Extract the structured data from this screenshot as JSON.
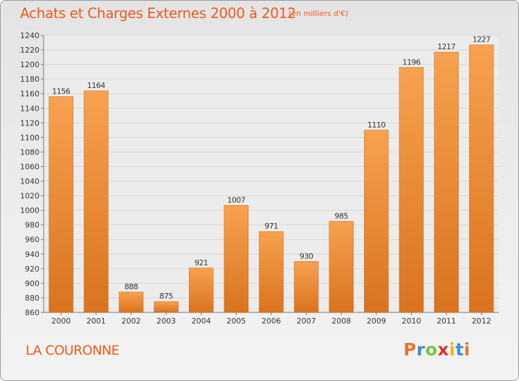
{
  "header": {
    "title": "Achats et Charges Externes 2000 à 2012",
    "unit": "(en milliers d'€)"
  },
  "footer": {
    "commune": "LA COURONNE",
    "brand": "Proxiti",
    "brand_colors": [
      "#e8742a",
      "#3a8fd6",
      "#7cc242",
      "#d9322c",
      "#f2b318",
      "#3a8fd6",
      "#e8742a"
    ]
  },
  "colors": {
    "accent": "#ee5a1a",
    "bar_top": "#f7a24f",
    "bar_bottom": "#d9731f"
  },
  "chart_data": {
    "type": "bar",
    "title": "Achats et Charges Externes 2000 à 2012",
    "subtitle": "(en milliers d'€)",
    "categories": [
      "2000",
      "2001",
      "2002",
      "2003",
      "2004",
      "2005",
      "2006",
      "2007",
      "2008",
      "2009",
      "2010",
      "2011",
      "2012"
    ],
    "values": [
      1156,
      1164,
      888,
      875,
      921,
      1007,
      971,
      930,
      985,
      1110,
      1196,
      1217,
      1227
    ],
    "data_labels": [
      "1156",
      "1164",
      "888",
      "875",
      "921",
      "1007",
      "971",
      "930",
      "985",
      "1110",
      "1196",
      "1217",
      "1227"
    ],
    "ylim": [
      860,
      1240
    ],
    "y_ticks": [
      "860",
      "880",
      "900",
      "920",
      "940",
      "960",
      "980",
      "1000",
      "1020",
      "1040",
      "1060",
      "1080",
      "1100",
      "1120",
      "1140",
      "1160",
      "1180",
      "1200",
      "1220",
      "1240"
    ],
    "grid": true,
    "legend": "none",
    "xlabel": "",
    "ylabel": ""
  }
}
